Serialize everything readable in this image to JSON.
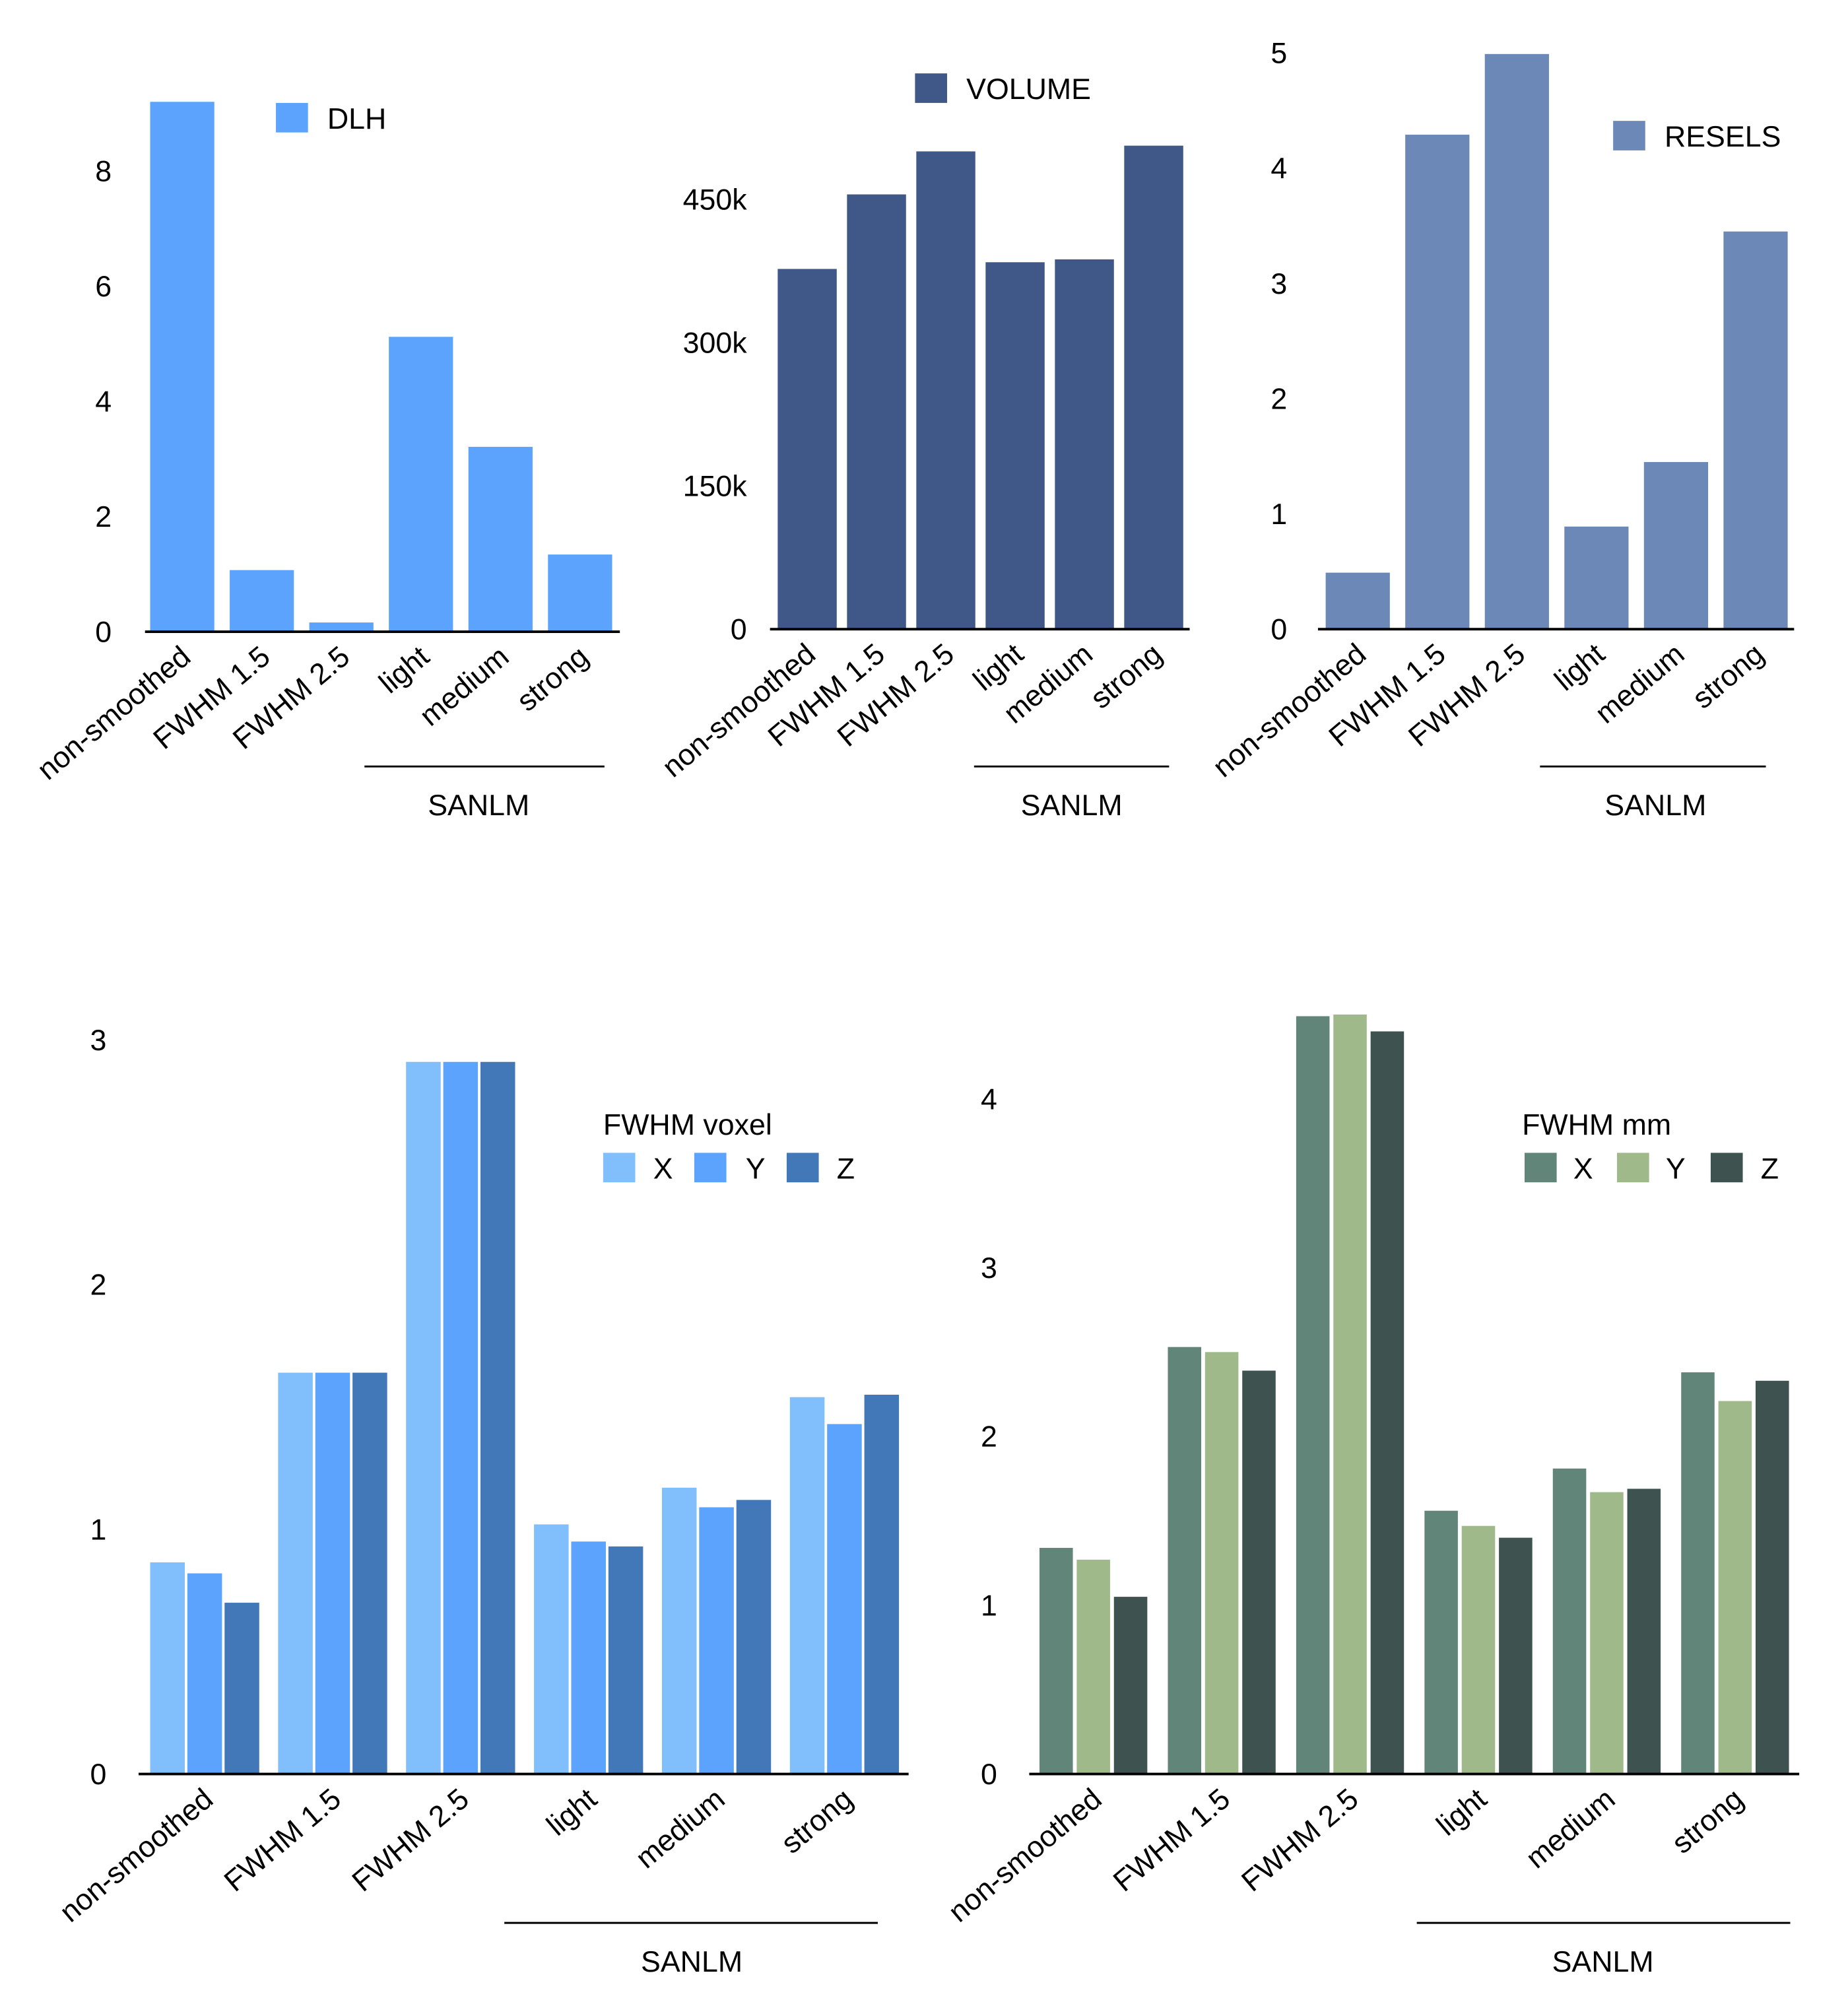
{
  "chart_data": [
    {
      "type": "bar",
      "categories": [
        "non-smoothed",
        "FWHM 1.5",
        "FWHM 2.5",
        "light",
        "medium",
        "strong"
      ],
      "group_label": "SANLM",
      "series": [
        {
          "name": "DLH",
          "color": "#5ba3fc",
          "values": [
            9.2,
            1.07,
            0.16,
            5.12,
            3.21,
            1.34
          ]
        }
      ],
      "yticks": [
        0,
        2,
        4,
        6,
        8
      ],
      "ylim": [
        0,
        9.5
      ],
      "legend": "top-right",
      "grid": false
    },
    {
      "type": "bar",
      "categories": [
        "non-smoothed",
        "FWHM 1.5",
        "FWHM 2.5",
        "light",
        "medium",
        "strong"
      ],
      "group_label": "SANLM",
      "series": [
        {
          "name": "VOLUME",
          "color": "#3f5888",
          "values": [
            377000,
            455000,
            500000,
            384000,
            387000,
            506000
          ]
        }
      ],
      "yticks": [
        0,
        150000,
        300000,
        450000
      ],
      "ytick_labels": [
        "0",
        "150k",
        "300k",
        "450k"
      ],
      "ylim": [
        0,
        550000
      ],
      "legend": "top",
      "grid": false
    },
    {
      "type": "bar",
      "categories": [
        "non-smoothed",
        "FWHM 1.5",
        "FWHM 2.5",
        "light",
        "medium",
        "strong"
      ],
      "group_label": "SANLM",
      "series": [
        {
          "name": "RESELS",
          "color": "#6b88b6",
          "values": [
            0.49,
            4.29,
            4.99,
            0.89,
            1.45,
            3.45
          ]
        }
      ],
      "yticks": [
        0,
        1,
        2,
        3,
        4,
        5
      ],
      "ylim": [
        0,
        5
      ],
      "legend": "top-right",
      "grid": false
    },
    {
      "type": "bar",
      "categories": [
        "non-smoothed",
        "FWHM 1.5",
        "FWHM 2.5",
        "light",
        "medium",
        "strong"
      ],
      "group_label": "SANLM",
      "legend_title": "FWHM voxel",
      "series": [
        {
          "name": "X",
          "color": "#80bffc",
          "values": [
            0.865,
            1.64,
            2.91,
            1.02,
            1.17,
            1.54
          ]
        },
        {
          "name": "Y",
          "color": "#5ba3fc",
          "values": [
            0.82,
            1.64,
            2.91,
            0.95,
            1.09,
            1.43
          ]
        },
        {
          "name": "Z",
          "color": "#4378b8",
          "values": [
            0.7,
            1.64,
            2.91,
            0.93,
            1.12,
            1.55
          ]
        }
      ],
      "yticks": [
        0,
        1,
        2,
        3
      ],
      "ylim": [
        0,
        3
      ],
      "legend": "top-right",
      "grid": false
    },
    {
      "type": "bar",
      "categories": [
        "non-smoothed",
        "FWHM 1.5",
        "FWHM 2.5",
        "light",
        "medium",
        "strong"
      ],
      "group_label": "SANLM",
      "legend_title": "FWHM mm",
      "series": [
        {
          "name": "X",
          "color": "#62857a",
          "values": [
            1.34,
            2.53,
            4.49,
            1.56,
            1.81,
            2.38
          ]
        },
        {
          "name": "Y",
          "color": "#a0b98a",
          "values": [
            1.27,
            2.5,
            4.5,
            1.47,
            1.67,
            2.21
          ]
        },
        {
          "name": "Z",
          "color": "#3e524f",
          "values": [
            1.05,
            2.39,
            4.4,
            1.4,
            1.69,
            2.33
          ]
        }
      ],
      "yticks": [
        0,
        1,
        2,
        3,
        4
      ],
      "ylim": [
        0,
        4.5
      ],
      "legend": "top-right",
      "grid": false
    }
  ]
}
